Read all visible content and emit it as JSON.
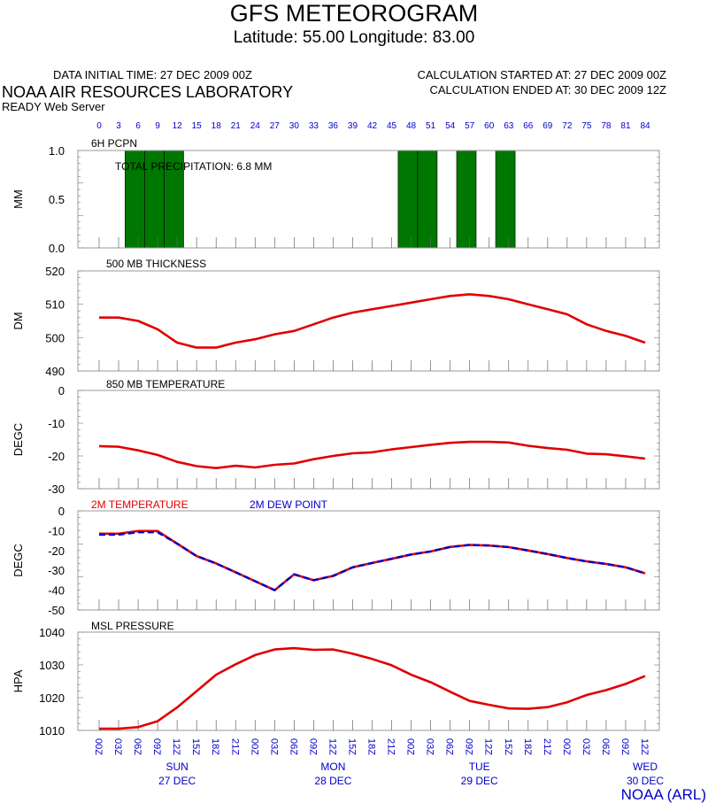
{
  "header": {
    "title": "GFS METEOROGRAM",
    "subtitle": "Latitude: 55.00 Longitude:  83.00",
    "data_initial_time": "DATA INITIAL TIME: 27 DEC 2009 00Z",
    "lab_name": "NOAA AIR RESOURCES LABORATORY",
    "server": "READY Web Server",
    "calc_started": "CALCULATION STARTED AT: 27 DEC 2009 00Z",
    "calc_ended": "CALCULATION ENDED AT: 30 DEC 2009 12Z",
    "credit": "NOAA (ARL)"
  },
  "colors": {
    "axis_labels": "#0000cc",
    "line": "#e00000",
    "dewpoint": "#0000cc",
    "bars": "#007700",
    "frame": "#888888"
  },
  "time_axis": {
    "hours": [
      0,
      3,
      6,
      9,
      12,
      15,
      18,
      21,
      24,
      27,
      30,
      33,
      36,
      39,
      42,
      45,
      48,
      51,
      54,
      57,
      60,
      63,
      66,
      69,
      72,
      75,
      78,
      81,
      84
    ],
    "time_labels": [
      "00Z",
      "03Z",
      "06Z",
      "09Z",
      "12Z",
      "15Z",
      "18Z",
      "21Z",
      "00Z",
      "03Z",
      "06Z",
      "09Z",
      "12Z",
      "15Z",
      "18Z",
      "21Z",
      "00Z",
      "03Z",
      "06Z",
      "09Z",
      "12Z",
      "15Z",
      "18Z",
      "21Z",
      "00Z",
      "03Z",
      "06Z",
      "09Z",
      "12Z"
    ],
    "days": [
      {
        "day": "SUN",
        "date": "27 DEC",
        "hour": 12
      },
      {
        "day": "MON",
        "date": "28 DEC",
        "hour": 36
      },
      {
        "day": "TUE",
        "date": "29 DEC",
        "hour": 58.5
      },
      {
        "day": "WED",
        "date": "30 DEC",
        "hour": 84
      }
    ]
  },
  "chart_data": [
    {
      "type": "bar",
      "title": "6H PCPN",
      "annotation": "TOTAL PRECIPITATION:   6.8 MM",
      "ylabel": "MM",
      "ylim": [
        0,
        1
      ],
      "yticks": [
        "0.0",
        "0.5",
        "1.0"
      ],
      "bars": [
        {
          "start": 4,
          "end": 7,
          "value": 1.0
        },
        {
          "start": 7,
          "end": 10,
          "value": 1.0
        },
        {
          "start": 10,
          "end": 13,
          "value": 1.0
        },
        {
          "start": 46,
          "end": 49,
          "value": 1.0
        },
        {
          "start": 49,
          "end": 52,
          "value": 1.0
        },
        {
          "start": 55,
          "end": 58,
          "value": 1.0
        },
        {
          "start": 61,
          "end": 64,
          "value": 1.0
        }
      ]
    },
    {
      "type": "line",
      "title": "500 MB  THICKNESS",
      "ylabel": "DM",
      "ylim": [
        490,
        520
      ],
      "yticks": [
        "490",
        "500",
        "510",
        "520"
      ],
      "series": [
        {
          "values": [
            506,
            506,
            505,
            502.5,
            498.5,
            497,
            497,
            498.5,
            499.5,
            501,
            502,
            504,
            506,
            507.5,
            508.5,
            509.5,
            510.5,
            511.5,
            512.5,
            513,
            512.5,
            511.5,
            510,
            508.5,
            507,
            504,
            502,
            500.5,
            498.5
          ],
          "color": "#e00000"
        }
      ]
    },
    {
      "type": "line",
      "title": "850 MB  TEMPERATURE",
      "ylabel": "DEGC",
      "ylim": [
        -30,
        0
      ],
      "yticks": [
        "-30",
        "-20",
        "-10",
        "0"
      ],
      "series": [
        {
          "values": [
            -17,
            -17.2,
            -18.3,
            -19.7,
            -21.8,
            -23.1,
            -23.7,
            -23,
            -23.5,
            -22.7,
            -22.3,
            -21,
            -20,
            -19.2,
            -18.9,
            -18,
            -17.3,
            -16.6,
            -16,
            -15.7,
            -15.7,
            -15.9,
            -16.9,
            -17.6,
            -18.1,
            -19.3,
            -19.5,
            -20.1,
            -20.8
          ],
          "color": "#e00000"
        }
      ]
    },
    {
      "type": "line",
      "ylabel": "DEGC",
      "ylim": [
        -50,
        0
      ],
      "yticks": [
        "-50",
        "-40",
        "-30",
        "-20",
        "-10",
        "0"
      ],
      "series": [
        {
          "name": "2M TEMPERATURE",
          "values": [
            -11.5,
            -11.5,
            -10.2,
            -10.2,
            -16.5,
            -22.8,
            -26.5,
            -31,
            -35.5,
            -40,
            -32,
            -35,
            -32.8,
            -28.5,
            -26.3,
            -24.2,
            -22,
            -20.5,
            -18.2,
            -17.2,
            -17.5,
            -18.3,
            -20,
            -21.8,
            -23.8,
            -25.5,
            -26.8,
            -28.5,
            -31.5
          ],
          "color": "#e00000"
        },
        {
          "name": "2M   DEW POINT",
          "values": [
            -12,
            -12,
            -10.8,
            -10.8,
            -16.5,
            -22.8,
            -26.5,
            -31,
            -35.5,
            -40,
            -32,
            -35,
            -32.8,
            -28.5,
            -26.3,
            -24.2,
            -22,
            -20.5,
            -18.2,
            -17.2,
            -17.5,
            -18.3,
            -20,
            -21.8,
            -23.8,
            -25.5,
            -26.8,
            -28.5,
            -31.5
          ],
          "color": "#0000cc",
          "dashed": true
        }
      ]
    },
    {
      "type": "line",
      "title": "MSL PRESSURE",
      "ylabel": "HPA",
      "ylim": [
        1010,
        1040
      ],
      "yticks": [
        "1010",
        "1020",
        "1030",
        "1040"
      ],
      "series": [
        {
          "values": [
            1010.5,
            1010.5,
            1011,
            1012.8,
            1017,
            1022,
            1027,
            1030.2,
            1033,
            1034.7,
            1035.1,
            1034.6,
            1034.7,
            1033.4,
            1031.8,
            1029.9,
            1027,
            1024.7,
            1021.8,
            1019,
            1017.8,
            1016.7,
            1016.6,
            1017.1,
            1018.6,
            1020.8,
            1022.3,
            1024.2,
            1026.6
          ],
          "color": "#e00000"
        }
      ]
    }
  ]
}
